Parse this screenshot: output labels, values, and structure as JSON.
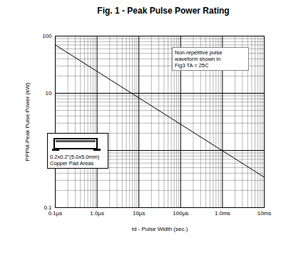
{
  "chart_data": {
    "type": "line",
    "title": "Fig. 1 - Peak Pulse Power Rating",
    "x_label": "td - Pulse Width (sec.)",
    "y_label": "PPPM-Peak Pulse Power (kW)",
    "x": [
      1e-07,
      0.01
    ],
    "values": [
      70,
      0.34
    ],
    "color": "#000000",
    "log": true,
    "grid": true,
    "xlim": [
      1e-07,
      0.01
    ],
    "ylim": [
      0.1,
      100
    ],
    "xticks": [
      {
        "value": 1e-07,
        "label": "0.1µs"
      },
      {
        "value": 1e-06,
        "label": "1.0µs"
      },
      {
        "value": 1e-05,
        "label": "10µs"
      },
      {
        "value": 0.0001,
        "label": "100µs"
      },
      {
        "value": 0.001,
        "label": "1.0ms"
      },
      {
        "value": 0.01,
        "label": "10ms"
      }
    ],
    "yticks": [
      0.1,
      1,
      10,
      100
    ],
    "annotations": [
      "Non-repetitive pulse\nwaveform shown in\nFig3 TA = 25C",
      "0.2x0.2\"(5.0x5.0mm)\nCopper Pad Areas"
    ]
  }
}
